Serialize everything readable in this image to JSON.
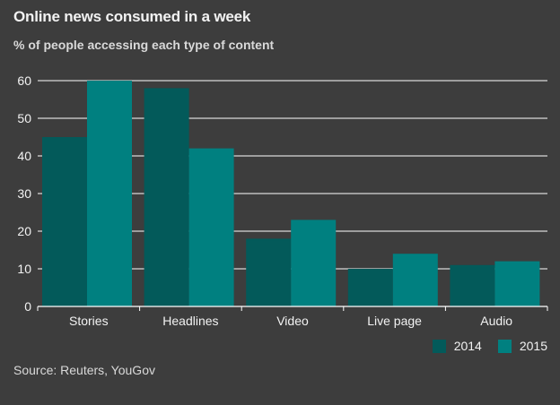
{
  "title": "Online news consumed in a week",
  "subtitle": "% of people accessing each type of content",
  "source": "Source: Reuters, YouGov",
  "colors": {
    "series_2014": "#035a5a",
    "series_2015": "#008080",
    "background": "#3d3d3d",
    "grid": "#ffffff"
  },
  "chart_data": {
    "type": "bar",
    "categories": [
      "Stories",
      "Headlines",
      "Video",
      "Live page",
      "Audio"
    ],
    "series": [
      {
        "name": "2014",
        "values": [
          45,
          58,
          18,
          10,
          11
        ]
      },
      {
        "name": "2015",
        "values": [
          60,
          42,
          23,
          14,
          12
        ]
      }
    ],
    "ylim": [
      0,
      60
    ],
    "yticks": [
      0,
      10,
      20,
      30,
      40,
      50,
      60
    ],
    "grid": true,
    "legend": "bottom-right"
  }
}
